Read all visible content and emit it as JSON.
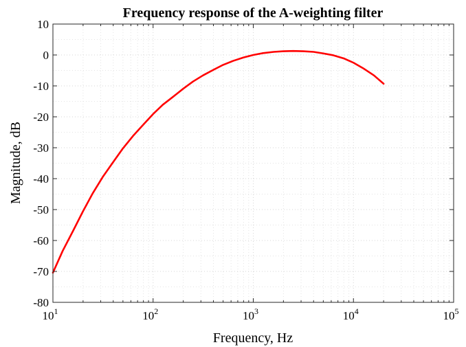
{
  "chart_data": {
    "type": "line",
    "title": "Frequency response of the A-weighting filter",
    "xlabel": "Frequency, Hz",
    "ylabel": "Magnitude, dB",
    "x_scale": "log",
    "xlim": [
      10,
      100000
    ],
    "ylim": [
      -80,
      10
    ],
    "x_ticks": [
      {
        "value": 10,
        "base": "10",
        "exp": "1"
      },
      {
        "value": 100,
        "base": "10",
        "exp": "2"
      },
      {
        "value": 1000,
        "base": "10",
        "exp": "3"
      },
      {
        "value": 10000,
        "base": "10",
        "exp": "4"
      },
      {
        "value": 100000,
        "base": "10",
        "exp": "5"
      }
    ],
    "y_ticks": [
      "10",
      "0",
      "-10",
      "-20",
      "-30",
      "-40",
      "-50",
      "-60",
      "-70",
      "-80"
    ],
    "grid": true,
    "minor_grid": true,
    "series": [
      {
        "color": "#ff0000",
        "x": [
          10,
          12.5,
          16,
          20,
          25,
          31.5,
          40,
          50,
          63,
          80,
          100,
          125,
          160,
          200,
          250,
          315,
          400,
          500,
          630,
          800,
          1000,
          1250,
          1600,
          2000,
          2500,
          3150,
          4000,
          5000,
          6300,
          8000,
          10000,
          12500,
          16000,
          20000
        ],
        "y": [
          -70.4,
          -63.4,
          -56.7,
          -50.5,
          -44.7,
          -39.4,
          -34.6,
          -30.2,
          -26.2,
          -22.5,
          -19.1,
          -16.1,
          -13.4,
          -10.9,
          -8.6,
          -6.6,
          -4.8,
          -3.2,
          -1.9,
          -0.8,
          0.0,
          0.6,
          1.0,
          1.2,
          1.3,
          1.2,
          1.0,
          0.5,
          -0.1,
          -1.1,
          -2.5,
          -4.3,
          -6.6,
          -9.3
        ]
      }
    ]
  }
}
